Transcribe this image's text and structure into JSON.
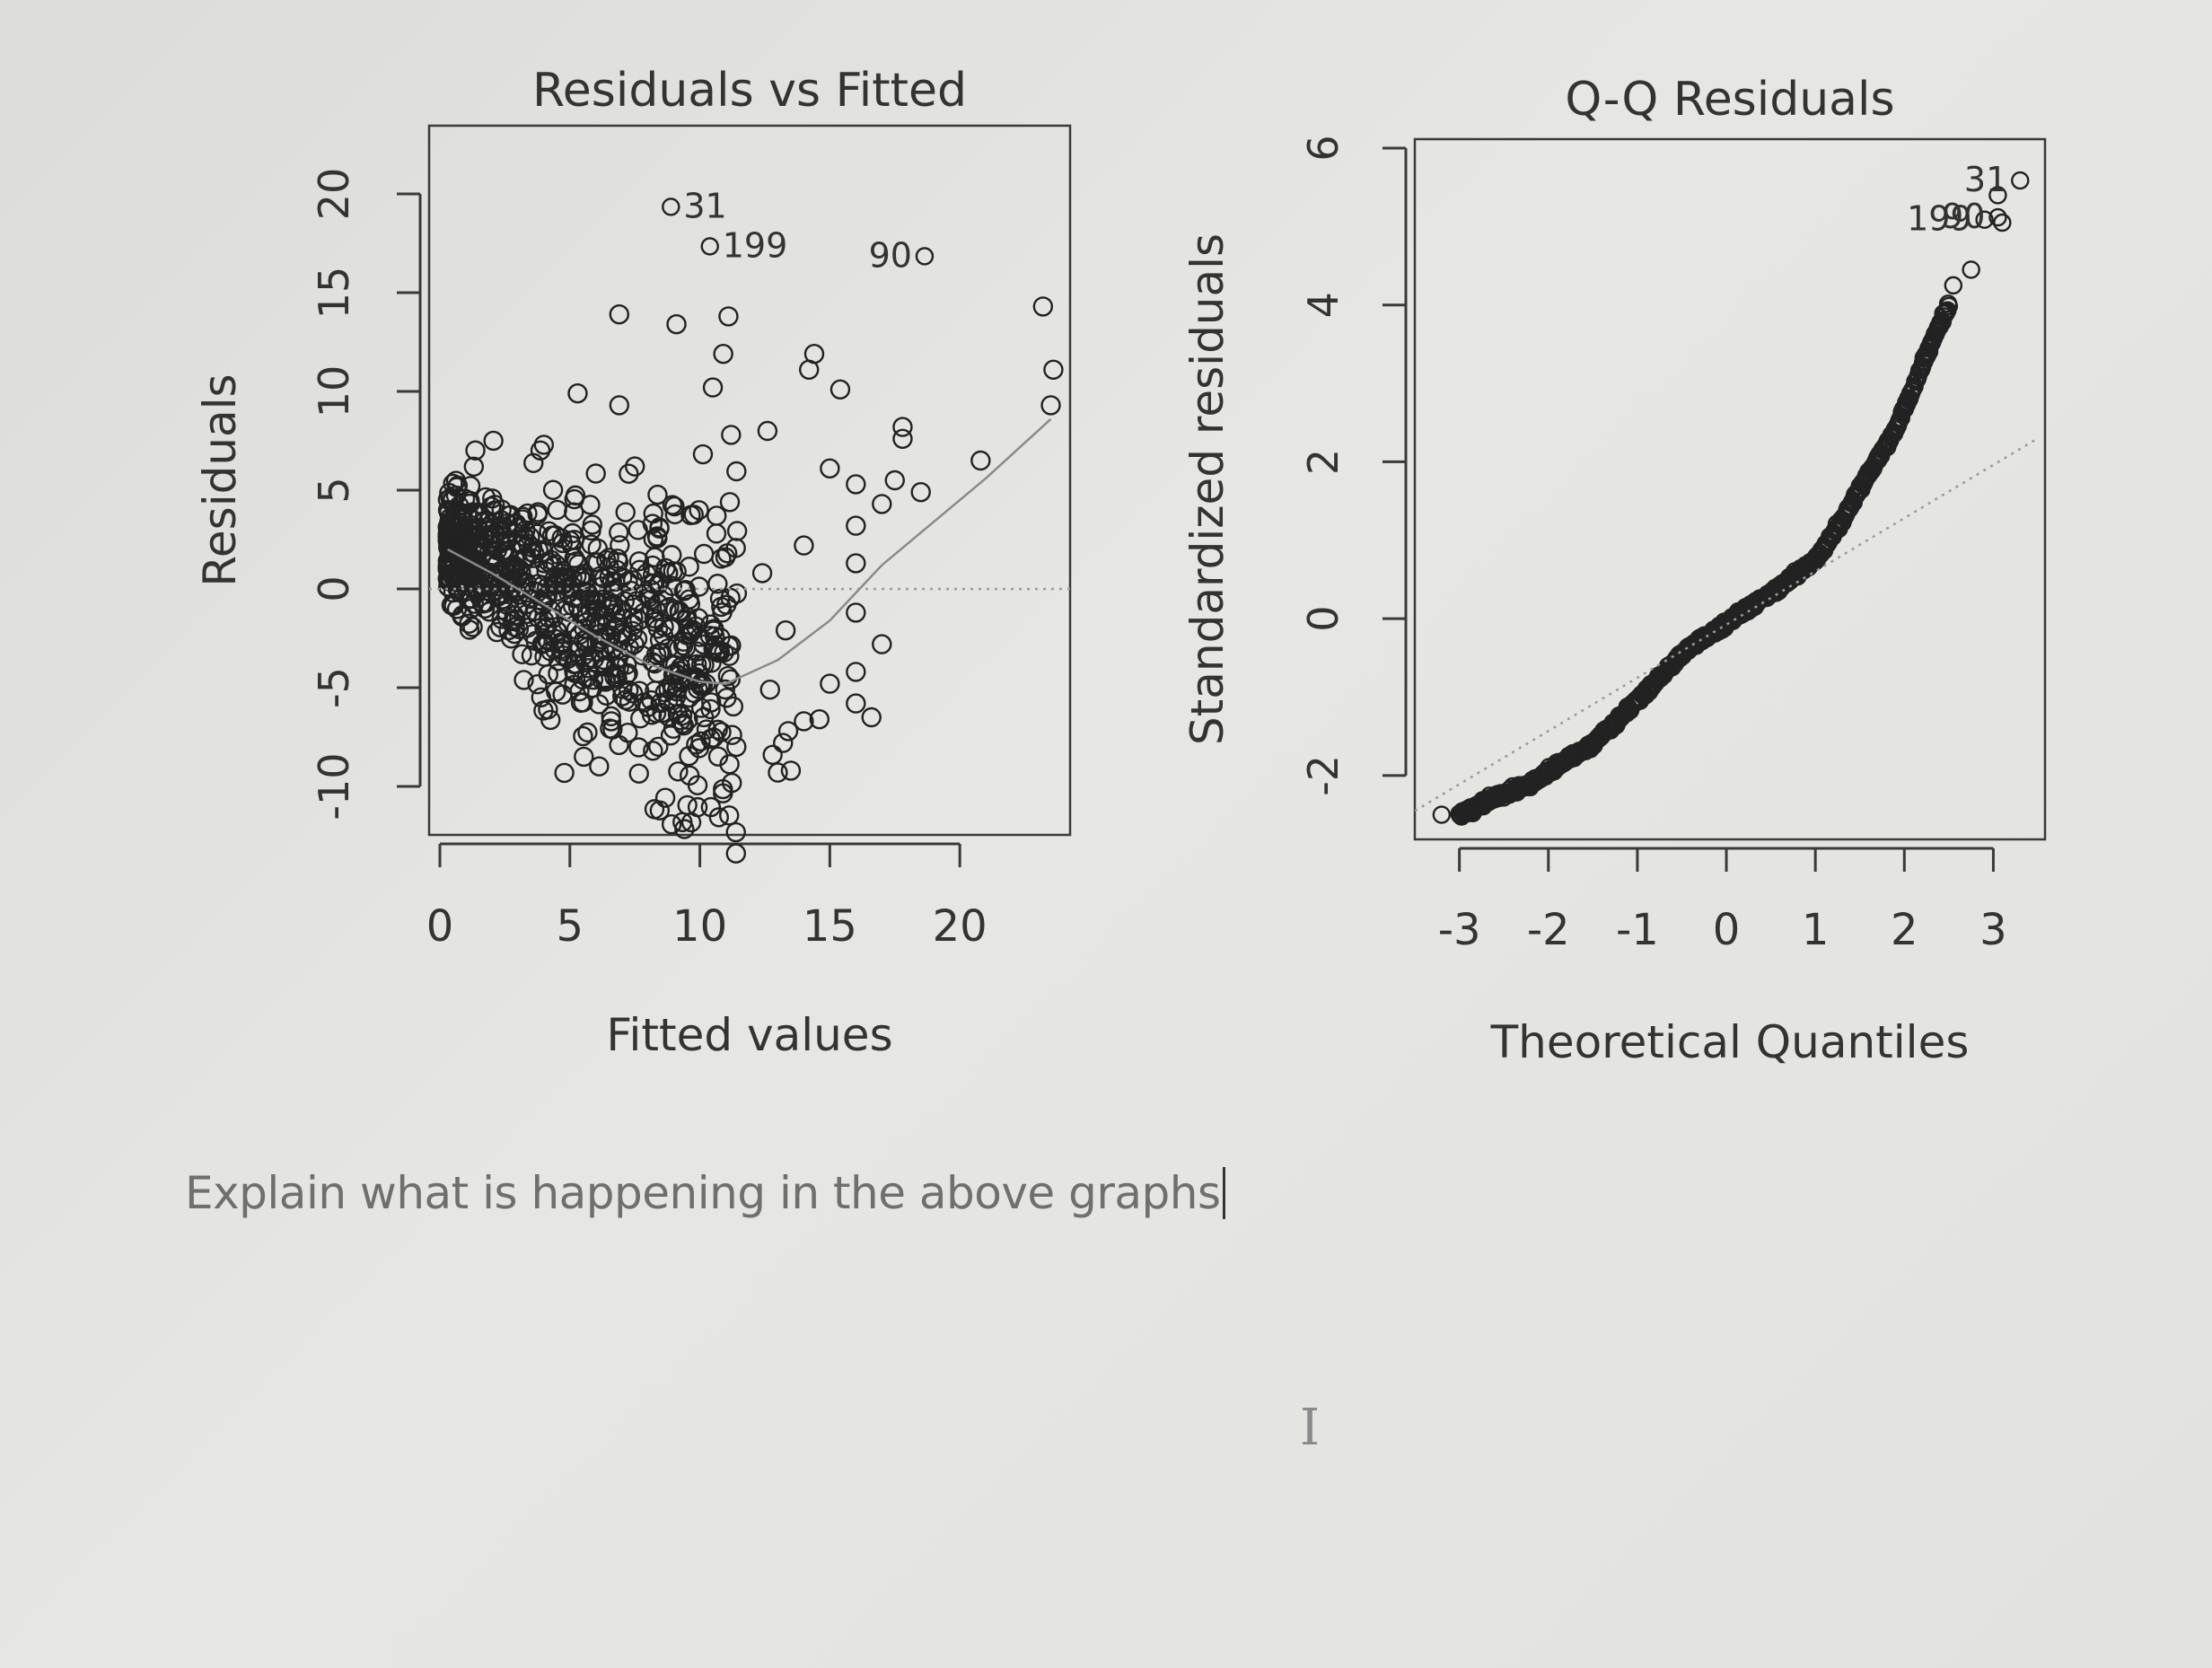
{
  "colors": {
    "ink": "#222222",
    "axis": "#3a3a3a",
    "ref": "#9a9a9a",
    "prompt": "#6f6f6f"
  },
  "prompt_text": "Explain what is happening in the above graphs",
  "chart_data": [
    {
      "type": "scatter",
      "title": "Residuals vs Fitted",
      "xlabel": "Fitted values",
      "ylabel": "Residuals",
      "xlim": [
        0,
        24
      ],
      "ylim": [
        -12,
        23
      ],
      "xticks": [
        0,
        5,
        10,
        15,
        20
      ],
      "yticks": [
        -10,
        -5,
        0,
        5,
        10,
        15,
        20
      ],
      "reference_line": {
        "y": 0,
        "style": "dotted"
      },
      "smooth_line": {
        "x": [
          0.3,
          2,
          4,
          6,
          8,
          10,
          11,
          13,
          15,
          17,
          19,
          21,
          23.5
        ],
        "y": [
          2,
          0.8,
          -0.8,
          -2.4,
          -3.8,
          -4.7,
          -4.8,
          -3.6,
          -1.6,
          1.2,
          3.4,
          5.6,
          8.6
        ]
      },
      "cluster": {
        "x_range": [
          0.3,
          11.5
        ],
        "y_center": "downward trend",
        "point_count": 800
      },
      "scatter_points": [
        {
          "x": 6.9,
          "y": 13.9
        },
        {
          "x": 9.1,
          "y": 13.4
        },
        {
          "x": 11.1,
          "y": 13.8
        },
        {
          "x": 10.9,
          "y": 11.9
        },
        {
          "x": 14.4,
          "y": 11.9
        },
        {
          "x": 14.2,
          "y": 11.1
        },
        {
          "x": 15.4,
          "y": 10.1
        },
        {
          "x": 10.5,
          "y": 10.2
        },
        {
          "x": 5.3,
          "y": 9.9
        },
        {
          "x": 6.9,
          "y": 9.3
        },
        {
          "x": 17.8,
          "y": 8.2
        },
        {
          "x": 17.8,
          "y": 7.6
        },
        {
          "x": 12.6,
          "y": 8.0
        },
        {
          "x": 11.2,
          "y": 7.8
        },
        {
          "x": 4.0,
          "y": 7.3
        },
        {
          "x": 7.5,
          "y": 6.2
        },
        {
          "x": 20.8,
          "y": 6.5
        },
        {
          "x": 23.2,
          "y": 14.3
        },
        {
          "x": 23.6,
          "y": 11.1
        },
        {
          "x": 23.5,
          "y": 9.3
        },
        {
          "x": 15.0,
          "y": 6.1
        },
        {
          "x": 16.0,
          "y": 5.3
        },
        {
          "x": 17.5,
          "y": 5.5
        },
        {
          "x": 18.5,
          "y": 4.9
        },
        {
          "x": 17.0,
          "y": 4.3
        },
        {
          "x": 16.0,
          "y": 3.2
        },
        {
          "x": 14.0,
          "y": 2.2
        },
        {
          "x": 16.0,
          "y": 1.3
        },
        {
          "x": 16.0,
          "y": -1.2
        },
        {
          "x": 17.0,
          "y": -2.8
        },
        {
          "x": 16.0,
          "y": -4.2
        },
        {
          "x": 15.0,
          "y": -4.8
        },
        {
          "x": 16.0,
          "y": -5.8
        },
        {
          "x": 16.6,
          "y": -6.5
        },
        {
          "x": 14.6,
          "y": -6.6
        },
        {
          "x": 14.0,
          "y": -6.7
        },
        {
          "x": 13.4,
          "y": -7.2
        },
        {
          "x": 12.8,
          "y": -8.4
        },
        {
          "x": 13.5,
          "y": -9.2
        },
        {
          "x": 13.0,
          "y": -9.3
        },
        {
          "x": 13.2,
          "y": -7.8
        },
        {
          "x": 12.7,
          "y": -5.1
        },
        {
          "x": 13.3,
          "y": -2.1
        },
        {
          "x": 12.4,
          "y": 0.8
        }
      ],
      "point_labels": [
        {
          "text": "31",
          "x": 9.3,
          "y": 18.8
        },
        {
          "text": "199",
          "x": 10.8,
          "y": 16.8
        },
        {
          "text": "90",
          "x": 18.3,
          "y": 16.3,
          "side": "left"
        }
      ]
    },
    {
      "type": "scatter",
      "title": "Q-Q Residuals",
      "xlabel": "Theoretical Quantiles",
      "ylabel": "Standardized residuals",
      "xlim": [
        -3.4,
        3.5
      ],
      "ylim": [
        -2.7,
        6.0
      ],
      "xticks": [
        -3,
        -2,
        -1,
        0,
        1,
        2,
        3
      ],
      "yticks": [
        -2,
        0,
        2,
        4,
        6
      ],
      "reference_line": {
        "from": [
          -3.5,
          -2.45
        ],
        "to": [
          3.5,
          2.3
        ],
        "style": "dotted"
      },
      "qq_curve": {
        "x": [
          -3.0,
          -2.6,
          -2.2,
          -2.0,
          -1.5,
          -1.0,
          -0.5,
          0.0,
          0.5,
          1.0,
          1.3,
          1.6,
          1.9,
          2.1,
          2.3,
          2.5
        ],
        "y": [
          -2.5,
          -2.28,
          -2.1,
          -1.95,
          -1.6,
          -1.05,
          -0.45,
          -0.05,
          0.32,
          0.75,
          1.25,
          1.85,
          2.4,
          2.95,
          3.5,
          4.0
        ]
      },
      "extreme_points": [
        {
          "x": -3.2,
          "y": -2.5
        },
        {
          "x": -2.85,
          "y": -2.48
        },
        {
          "x": 2.55,
          "y": 4.25
        },
        {
          "x": 2.75,
          "y": 4.45
        },
        {
          "x": 3.1,
          "y": 5.05
        },
        {
          "x": 3.05,
          "y": 5.4
        }
      ],
      "point_labels": [
        {
          "text": "31",
          "x": 3.2,
          "y": 5.45,
          "side": "left"
        },
        {
          "text": "199",
          "x": 2.8,
          "y": 4.95,
          "side": "left"
        },
        {
          "text": "90",
          "x": 2.95,
          "y": 4.98,
          "side": "left"
        }
      ]
    }
  ]
}
